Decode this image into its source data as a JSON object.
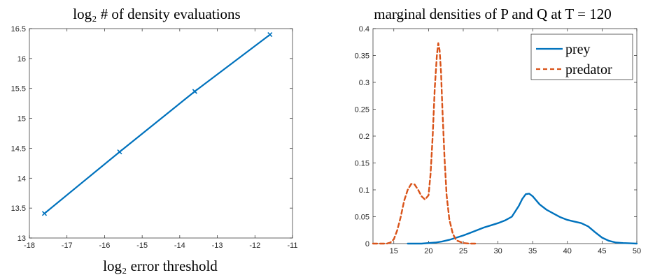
{
  "chart_data": [
    {
      "type": "line",
      "title": "log₂ # of density evaluations",
      "xlabel": "log₂ error threshold",
      "ylabel": "",
      "xlim": [
        -18,
        -11
      ],
      "ylim": [
        13,
        16.5
      ],
      "xticks": [
        -18,
        -17,
        -16,
        -15,
        -14,
        -13,
        -12,
        -11
      ],
      "yticks": [
        13,
        13.5,
        14,
        14.5,
        15,
        15.5,
        16,
        16.5
      ],
      "grid": false,
      "color": "#0072BD",
      "marker": "x",
      "series": [
        {
          "x": [
            -17.6,
            -15.6,
            -13.6,
            -11.6
          ],
          "y": [
            13.41,
            14.44,
            15.45,
            16.4
          ]
        }
      ]
    },
    {
      "type": "line",
      "title": "marginal densities of P and Q at T = 120",
      "xlabel": "",
      "ylabel": "",
      "xlim": [
        12,
        50
      ],
      "ylim": [
        0,
        0.4
      ],
      "xticks": [
        15,
        20,
        25,
        30,
        35,
        40,
        45,
        50
      ],
      "yticks": [
        0,
        0.05,
        0.1,
        0.15,
        0.2,
        0.25,
        0.3,
        0.35,
        0.4
      ],
      "grid": false,
      "legend": "top-right",
      "series": [
        {
          "name": "prey",
          "color": "#0072BD",
          "style": "solid",
          "x": [
            17,
            19,
            21,
            22,
            23,
            24,
            25,
            26,
            27,
            28,
            29,
            30,
            31,
            32,
            33,
            33.5,
            34,
            34.5,
            35,
            36,
            37,
            38,
            39,
            40,
            41,
            42,
            43,
            44,
            45,
            46,
            47,
            48,
            49,
            50
          ],
          "y": [
            0,
            0,
            0.002,
            0.004,
            0.007,
            0.011,
            0.015,
            0.02,
            0.025,
            0.03,
            0.034,
            0.038,
            0.043,
            0.05,
            0.07,
            0.083,
            0.092,
            0.093,
            0.088,
            0.073,
            0.063,
            0.056,
            0.049,
            0.044,
            0.041,
            0.038,
            0.032,
            0.021,
            0.011,
            0.005,
            0.002,
            0.001,
            0.0005,
            0
          ]
        },
        {
          "name": "predator",
          "color": "#D95319",
          "style": "dashed",
          "x": [
            12,
            13,
            14,
            14.5,
            15,
            15.5,
            16,
            16.5,
            17,
            17.5,
            18,
            18.5,
            19,
            19.5,
            20,
            20.3,
            20.6,
            20.9,
            21.2,
            21.4,
            21.6,
            21.8,
            22,
            22.3,
            22.6,
            23,
            23.5,
            24,
            25,
            26,
            27
          ],
          "y": [
            0,
            0,
            0,
            0.002,
            0.008,
            0.025,
            0.05,
            0.08,
            0.1,
            0.111,
            0.11,
            0.1,
            0.088,
            0.082,
            0.09,
            0.13,
            0.2,
            0.29,
            0.35,
            0.373,
            0.36,
            0.32,
            0.25,
            0.16,
            0.09,
            0.045,
            0.018,
            0.006,
            0.001,
            0,
            0
          ]
        }
      ]
    }
  ]
}
